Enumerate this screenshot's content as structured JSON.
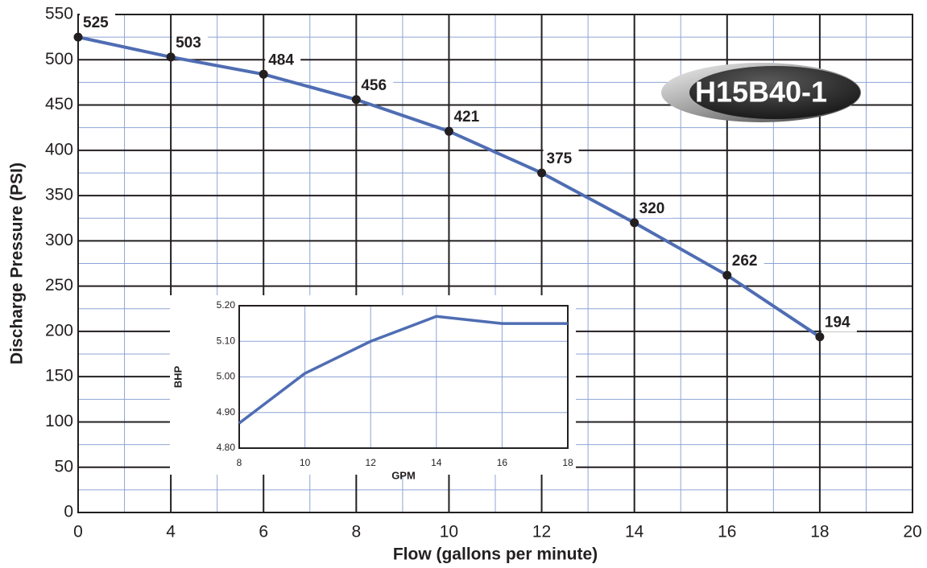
{
  "chart_data": [
    {
      "type": "line",
      "xlabel": "Flow (gallons per minute)",
      "ylabel": "Discharge Pressure (PSI)",
      "annotation": "H15B40-1",
      "categories": [
        "0",
        "4",
        "6",
        "8",
        "10",
        "12",
        "14",
        "16",
        "18",
        "20"
      ],
      "series": [
        {
          "color": "#4f6db3",
          "values": [
            525,
            503,
            484,
            456,
            421,
            375,
            320,
            262,
            194,
            null
          ]
        }
      ],
      "ylim": [
        0,
        550
      ],
      "yticks": [
        0,
        50,
        100,
        150,
        200,
        250,
        300,
        350,
        400,
        450,
        500,
        550
      ],
      "grid": true
    },
    {
      "type": "line",
      "xlabel": "GPM",
      "ylabel": "BHP",
      "x": [
        8,
        10,
        12,
        14,
        16,
        18
      ],
      "series": [
        {
          "color": "#4f6db3",
          "values": [
            4.87,
            5.01,
            5.1,
            5.17,
            5.15,
            5.15
          ]
        }
      ],
      "xlim": [
        8,
        18
      ],
      "xticks": [
        8,
        10,
        12,
        14,
        16,
        18
      ],
      "ylim": [
        4.8,
        5.2
      ],
      "yticks": [
        {
          "value": 4.8,
          "label": "4.80"
        },
        {
          "value": 4.9,
          "label": "4.90"
        },
        {
          "value": 5.0,
          "label": "5.00"
        },
        {
          "value": 5.1,
          "label": "5.10"
        },
        {
          "value": 5.2,
          "label": "5.20"
        }
      ],
      "grid": true
    }
  ]
}
